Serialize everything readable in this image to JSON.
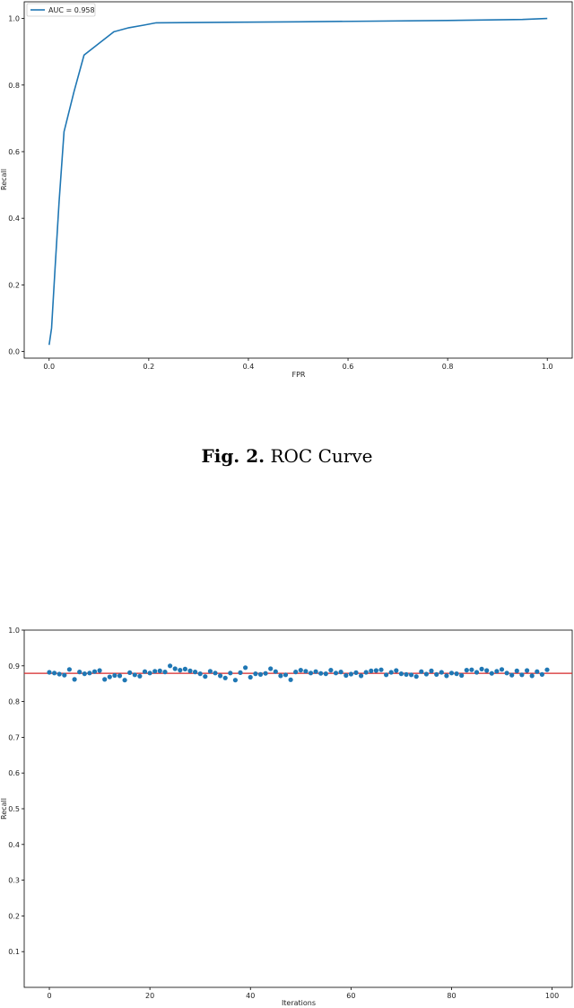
{
  "caption": {
    "label": "Fig. 2.",
    "text": "ROC Curve"
  },
  "chart_data": [
    {
      "type": "line",
      "xlabel": "FPR",
      "ylabel": "Recall",
      "xlim": [
        -0.05,
        1.05
      ],
      "ylim": [
        -0.02,
        1.05
      ],
      "xticks": [
        0.0,
        0.2,
        0.4,
        0.6,
        0.8,
        1.0
      ],
      "yticks": [
        0.0,
        0.2,
        0.4,
        0.6,
        0.8,
        1.0
      ],
      "x_tick_labels": [
        "0.0",
        "0.2",
        "0.4",
        "0.6",
        "0.8",
        "1.0"
      ],
      "y_tick_labels": [
        "0.0",
        "0.2",
        "0.4",
        "0.6",
        "0.8",
        "1.0"
      ],
      "grid": false,
      "legend_position": "top-left",
      "color": "#1f77b4",
      "series": [
        {
          "name": "AUC = 0.958",
          "x": [
            0.0,
            0.005,
            0.012,
            0.02,
            0.03,
            0.05,
            0.07,
            0.1,
            0.13,
            0.16,
            0.19,
            0.215,
            0.5,
            0.8,
            0.95,
            1.0
          ],
          "y": [
            0.02,
            0.07,
            0.25,
            0.45,
            0.66,
            0.78,
            0.89,
            0.925,
            0.96,
            0.972,
            0.98,
            0.987,
            0.99,
            0.994,
            0.997,
            1.0
          ]
        }
      ]
    },
    {
      "type": "scatter",
      "xlabel": "Iterations",
      "ylabel": "Recall",
      "xlim": [
        -5,
        104
      ],
      "ylim": [
        0.0,
        1.0
      ],
      "xticks": [
        0,
        20,
        40,
        60,
        80,
        100
      ],
      "yticks": [
        0.1,
        0.2,
        0.3,
        0.4,
        0.5,
        0.6,
        0.7,
        0.8,
        0.9,
        1.0
      ],
      "x_tick_labels": [
        "0",
        "20",
        "40",
        "60",
        "80",
        "100"
      ],
      "y_tick_labels": [
        "0.1",
        "0.2",
        "0.3",
        "0.4",
        "0.5",
        "0.6",
        "0.7",
        "0.8",
        "0.9",
        "1.0"
      ],
      "grid": false,
      "point_color": "#1f77b4",
      "reference_line": {
        "y": 0.879,
        "color": "#d62728"
      },
      "x": [
        0,
        1,
        2,
        3,
        4,
        5,
        6,
        7,
        8,
        9,
        10,
        11,
        12,
        13,
        14,
        15,
        16,
        17,
        18,
        19,
        20,
        21,
        22,
        23,
        24,
        25,
        26,
        27,
        28,
        29,
        30,
        31,
        32,
        33,
        34,
        35,
        36,
        37,
        38,
        39,
        40,
        41,
        42,
        43,
        44,
        45,
        46,
        47,
        48,
        49,
        50,
        51,
        52,
        53,
        54,
        55,
        56,
        57,
        58,
        59,
        60,
        61,
        62,
        63,
        64,
        65,
        66,
        67,
        68,
        69,
        70,
        71,
        72,
        73,
        74,
        75,
        76,
        77,
        78,
        79,
        80,
        81,
        82,
        83,
        84,
        85,
        86,
        87,
        88,
        89,
        90,
        91,
        92,
        93,
        94,
        95,
        96,
        97,
        98,
        99
      ],
      "y": [
        0.882,
        0.88,
        0.877,
        0.874,
        0.89,
        0.862,
        0.883,
        0.878,
        0.88,
        0.884,
        0.887,
        0.862,
        0.869,
        0.873,
        0.872,
        0.86,
        0.881,
        0.875,
        0.871,
        0.884,
        0.88,
        0.885,
        0.886,
        0.883,
        0.9,
        0.892,
        0.888,
        0.891,
        0.886,
        0.883,
        0.878,
        0.87,
        0.885,
        0.88,
        0.872,
        0.866,
        0.88,
        0.86,
        0.881,
        0.895,
        0.868,
        0.878,
        0.876,
        0.879,
        0.892,
        0.884,
        0.872,
        0.875,
        0.861,
        0.883,
        0.888,
        0.885,
        0.88,
        0.884,
        0.879,
        0.878,
        0.888,
        0.88,
        0.883,
        0.873,
        0.877,
        0.881,
        0.872,
        0.882,
        0.886,
        0.887,
        0.889,
        0.875,
        0.882,
        0.887,
        0.878,
        0.876,
        0.875,
        0.87,
        0.884,
        0.877,
        0.886,
        0.876,
        0.882,
        0.872,
        0.88,
        0.878,
        0.873,
        0.888,
        0.889,
        0.882,
        0.891,
        0.887,
        0.879,
        0.885,
        0.89,
        0.88,
        0.874,
        0.886,
        0.875,
        0.887,
        0.872,
        0.884,
        0.876,
        0.889
      ]
    }
  ]
}
